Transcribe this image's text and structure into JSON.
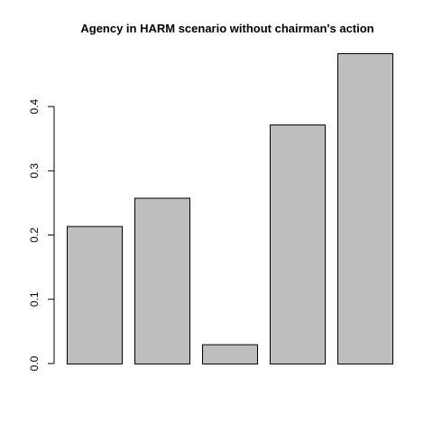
{
  "chart_data": {
    "type": "bar",
    "title": "Agency in HARM scenario without chairman's action",
    "xlabel": "",
    "ylabel": "",
    "categories": [
      "",
      "",
      "",
      "",
      ""
    ],
    "values": [
      0.214,
      0.258,
      0.03,
      0.372,
      0.483
    ],
    "ylim": [
      0,
      0.483
    ],
    "yticks": [
      0.0,
      0.1,
      0.2,
      0.3,
      0.4
    ],
    "ytick_labels": [
      "0.0",
      "0.1",
      "0.2",
      "0.3",
      "0.4"
    ],
    "bar_color": "#bebebe",
    "bar_border_color": "#000000",
    "grid": false,
    "legend": "none"
  }
}
